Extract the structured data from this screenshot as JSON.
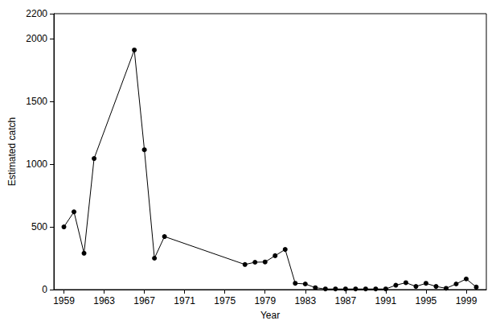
{
  "chart_data": {
    "type": "line",
    "x_label": "Year",
    "y_label": "Estimated catch",
    "x": [
      1959,
      1960,
      1961,
      1962,
      1966,
      1967,
      1968,
      1969,
      1977,
      1978,
      1979,
      1980,
      1981,
      1982,
      1983,
      1984,
      1985,
      1986,
      1987,
      1988,
      1989,
      1990,
      1991,
      1992,
      1993,
      1994,
      1995,
      1996,
      1997,
      1998,
      1999,
      2000
    ],
    "values": [
      500,
      620,
      290,
      1045,
      1910,
      1115,
      250,
      423,
      200,
      218,
      220,
      270,
      320,
      50,
      45,
      15,
      5,
      5,
      5,
      5,
      5,
      5,
      5,
      35,
      55,
      25,
      50,
      25,
      10,
      45,
      85,
      20
    ],
    "color": "#000000",
    "marker": "circle",
    "xlim": [
      1958,
      2001
    ],
    "xticks": [
      1959,
      1963,
      1967,
      1971,
      1975,
      1979,
      1983,
      1987,
      1991,
      1995,
      1999
    ],
    "ylim": [
      0,
      2200
    ],
    "yticks": [
      0,
      500,
      1000,
      1500,
      2000
    ],
    "grid": false
  }
}
